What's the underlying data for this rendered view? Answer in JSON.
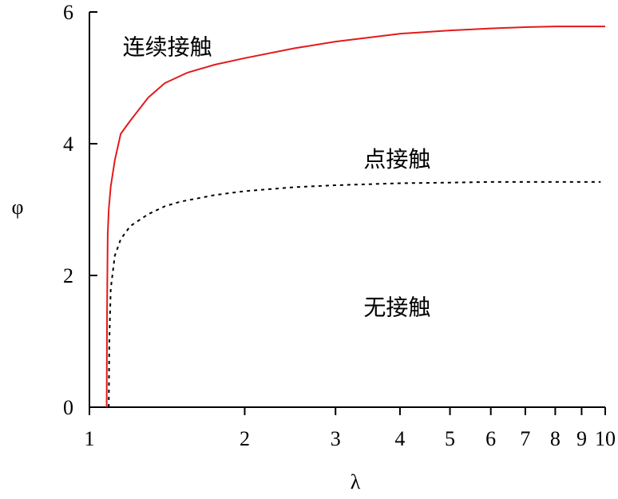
{
  "chart_data": {
    "type": "line",
    "xlabel": "λ",
    "ylabel": "φ",
    "xscale": "log",
    "xlim": [
      1,
      10
    ],
    "ylim": [
      0,
      6
    ],
    "xticks": [
      1,
      2,
      3,
      4,
      5,
      6,
      7,
      8,
      9,
      10
    ],
    "xtick_labels": [
      "1",
      "2",
      "3",
      "4",
      "5",
      "6",
      "7",
      "8",
      "9",
      "10"
    ],
    "yticks": [
      0,
      2,
      4,
      6
    ],
    "ytick_labels": [
      "0",
      "2",
      "4",
      "6"
    ],
    "grid": false,
    "series": [
      {
        "style": "solid",
        "color": "#e31a1c",
        "x": [
          1.08,
          1.082,
          1.085,
          1.09,
          1.1,
          1.12,
          1.15,
          1.2,
          1.3,
          1.4,
          1.55,
          1.75,
          2.0,
          2.5,
          3.0,
          4.0,
          5.0,
          6.0,
          7.0,
          8.0,
          9.0,
          10.0
        ],
        "y": [
          0.0,
          1.5,
          2.62,
          3.0,
          3.35,
          3.75,
          4.15,
          4.35,
          4.7,
          4.92,
          5.08,
          5.2,
          5.3,
          5.45,
          5.55,
          5.67,
          5.72,
          5.75,
          5.77,
          5.78,
          5.78,
          5.78
        ]
      },
      {
        "style": "dotted",
        "color": "#000000",
        "x": [
          1.09,
          1.093,
          1.1,
          1.12,
          1.15,
          1.2,
          1.3,
          1.4,
          1.5,
          1.75,
          2.0,
          2.5,
          3.0,
          4.0,
          5.0,
          6.0,
          7.0,
          8.0,
          9.0,
          9.8
        ],
        "y": [
          0.0,
          1.0,
          1.8,
          2.3,
          2.55,
          2.75,
          2.93,
          3.05,
          3.12,
          3.22,
          3.28,
          3.34,
          3.37,
          3.4,
          3.41,
          3.42,
          3.42,
          3.42,
          3.42,
          3.42
        ]
      }
    ],
    "annotations": [
      {
        "text": "连续接触",
        "x": 1.16,
        "y": 5.35
      },
      {
        "text": "点接触",
        "x": 3.4,
        "y": 3.65
      },
      {
        "text": "无接触",
        "x": 3.4,
        "y": 1.4
      }
    ]
  }
}
